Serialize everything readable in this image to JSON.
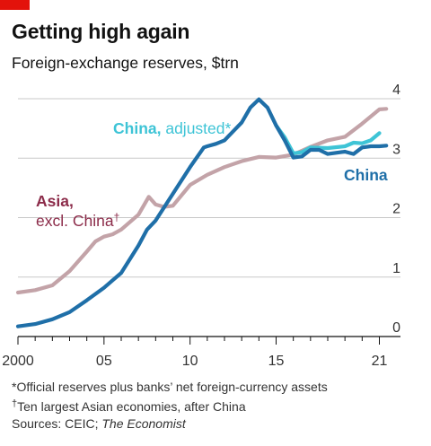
{
  "header": {
    "title": "Getting high again",
    "subtitle": "Foreign-exchange reserves, $trn"
  },
  "colors": {
    "accent": "#e3120b",
    "china": "#1f6fa8",
    "china_adjusted": "#3ec4d6",
    "asia": "#c3a3a8",
    "asia_label": "#8c2c4a",
    "grid": "#c8c8c8"
  },
  "annotations": {
    "china_adjusted": {
      "name": "China,",
      "rest": " adjusted*"
    },
    "china": "China",
    "asia_line1": "Asia,",
    "asia_line2_text": "excl. China",
    "asia_line2_mark": "†"
  },
  "footnotes": {
    "note1": "*Official reserves plus banks’ net foreign-currency assets",
    "note2_mark": "†",
    "note2_text": "Ten largest Asian economies, after China",
    "source_prefix": "Sources: CEIC; ",
    "source_italic": "The Economist"
  },
  "chart_data": {
    "type": "line",
    "xlim": [
      2000,
      2021.6
    ],
    "ylim": [
      0,
      4
    ],
    "x_ticks": [
      {
        "value": 2000,
        "label": "2000"
      },
      {
        "value": 2005,
        "label": "05"
      },
      {
        "value": 2010,
        "label": "10"
      },
      {
        "value": 2015,
        "label": "15"
      },
      {
        "value": 2021,
        "label": "21"
      }
    ],
    "y_ticks": [
      {
        "value": 0,
        "label": "0"
      },
      {
        "value": 1,
        "label": "1"
      },
      {
        "value": 2,
        "label": "2"
      },
      {
        "value": 3,
        "label": "3"
      },
      {
        "value": 4,
        "label": "4"
      }
    ],
    "grid": true,
    "series": [
      {
        "name": "Asia, excl. China",
        "x": [
          2000,
          2001,
          2002,
          2003,
          2004,
          2004.5,
          2005,
          2005.5,
          2006,
          2007,
          2007.6,
          2008,
          2008.5,
          2009,
          2010,
          2011,
          2012,
          2013,
          2014,
          2015,
          2016,
          2017,
          2018,
          2019,
          2020,
          2021,
          2021.4
        ],
        "y": [
          0.74,
          0.78,
          0.86,
          1.1,
          1.43,
          1.6,
          1.68,
          1.72,
          1.8,
          2.05,
          2.35,
          2.22,
          2.18,
          2.2,
          2.55,
          2.72,
          2.85,
          2.95,
          3.02,
          3.01,
          3.06,
          3.19,
          3.3,
          3.36,
          3.58,
          3.82,
          3.83
        ]
      },
      {
        "name": "China",
        "x": [
          2000,
          2001,
          2002,
          2003,
          2004,
          2005,
          2006,
          2007,
          2007.5,
          2008,
          2009,
          2010,
          2010.8,
          2011,
          2011.5,
          2012,
          2012.5,
          2013,
          2013.5,
          2014,
          2014.5,
          2015,
          2015.5,
          2016,
          2016.5,
          2017,
          2017.5,
          2018,
          2019,
          2019.5,
          2020,
          2020.5,
          2021,
          2021.4
        ],
        "y": [
          0.17,
          0.21,
          0.29,
          0.41,
          0.61,
          0.82,
          1.07,
          1.53,
          1.8,
          1.95,
          2.4,
          2.85,
          3.18,
          3.2,
          3.24,
          3.3,
          3.45,
          3.6,
          3.85,
          3.99,
          3.85,
          3.55,
          3.3,
          3.01,
          3.03,
          3.14,
          3.14,
          3.07,
          3.11,
          3.07,
          3.18,
          3.2,
          3.2,
          3.21
        ]
      },
      {
        "name": "China, adjusted",
        "x": [
          2015,
          2015.5,
          2016,
          2016.5,
          2017,
          2018,
          2019,
          2019.5,
          2020,
          2020.5,
          2021
        ],
        "y": [
          3.55,
          3.35,
          3.08,
          3.1,
          3.18,
          3.17,
          3.2,
          3.26,
          3.25,
          3.3,
          3.42
        ]
      }
    ]
  }
}
